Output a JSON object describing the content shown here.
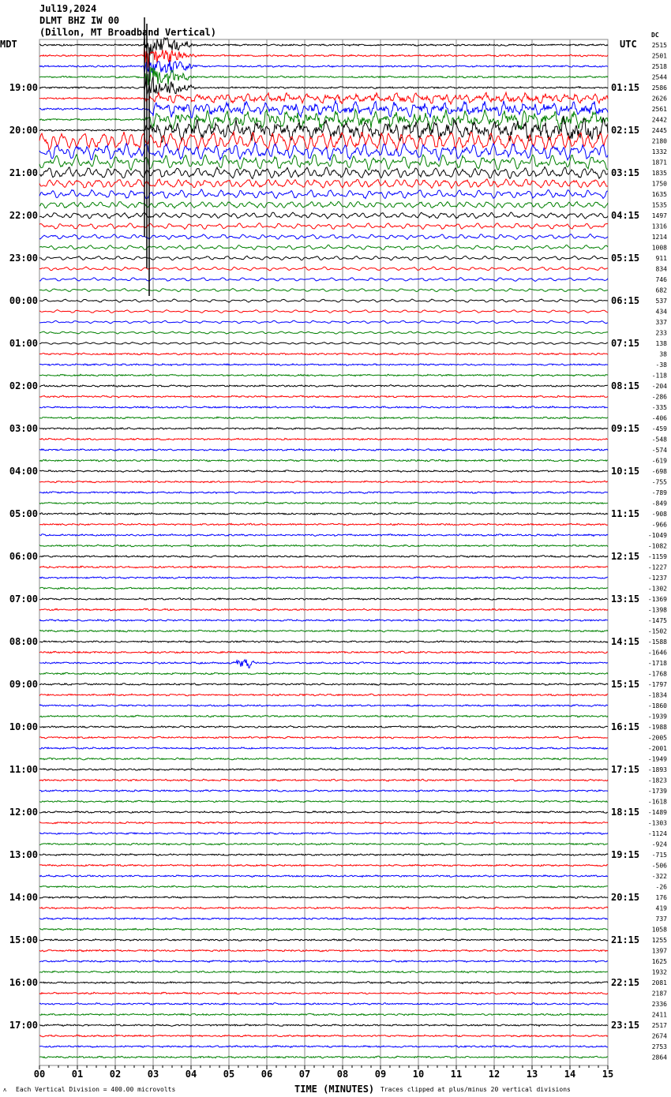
{
  "header": {
    "date": "Jul19,2024",
    "station": "DLMT BHZ IW 00",
    "location": "(Dillon, MT Broadband Vertical)",
    "left_tz": "MDT",
    "right_tz": "UTC",
    "dc_header": "DC"
  },
  "footer": {
    "scale_note": "Each Vertical Division =  400.00 microvolts",
    "xlabel": "TIME (MINUTES)",
    "clip_note": "Traces clipped at plus/minus 20 vertical divisions"
  },
  "chart_data": {
    "type": "line",
    "title": "DLMT BHZ IW 00",
    "xlabel": "TIME (MINUTES)",
    "xlim": [
      0,
      15
    ],
    "grid": true,
    "x_ticks": [
      "00",
      "01",
      "02",
      "03",
      "04",
      "05",
      "06",
      "07",
      "08",
      "09",
      "10",
      "11",
      "12",
      "13",
      "14",
      "15"
    ],
    "trace_colors": [
      "#000000",
      "#ff0000",
      "#0000ff",
      "#008000"
    ],
    "left_labels": [
      "19:00",
      "20:00",
      "21:00",
      "22:00",
      "23:00",
      "00:00",
      "01:00",
      "02:00",
      "03:00",
      "04:00",
      "05:00",
      "06:00",
      "07:00",
      "08:00",
      "09:00",
      "10:00",
      "11:00",
      "12:00",
      "13:00",
      "14:00",
      "15:00",
      "16:00",
      "17:00"
    ],
    "right_labels": [
      "01:15",
      "02:15",
      "03:15",
      "04:15",
      "05:15",
      "06:15",
      "07:15",
      "08:15",
      "09:15",
      "10:15",
      "11:15",
      "12:15",
      "13:15",
      "14:15",
      "15:15",
      "16:15",
      "17:15",
      "18:15",
      "19:15",
      "20:15",
      "21:15",
      "22:15",
      "23:15"
    ],
    "dc_values": [
      "2515",
      "2501",
      "2518",
      "2544",
      "2586",
      "2626",
      "2561",
      "2442",
      "2445",
      "2180",
      "1332",
      "1871",
      "1835",
      "1750",
      "1635",
      "1535",
      "1497",
      "1316",
      "1214",
      "1008",
      "911",
      "834",
      "746",
      "682",
      "537",
      "434",
      "337",
      "233",
      "138",
      "38",
      "-38",
      "-118",
      "-204",
      "-286",
      "-335",
      "-406",
      "-459",
      "-548",
      "-574",
      "-619",
      "-698",
      "-755",
      "-789",
      "-849",
      "-908",
      "-966",
      "-1049",
      "-1082",
      "-1159",
      "-1227",
      "-1237",
      "-1302",
      "-1369",
      "-1398",
      "-1475",
      "-1502",
      "-1588",
      "-1646",
      "-1718",
      "-1768",
      "-1797",
      "-1834",
      "-1860",
      "-1939",
      "-1988",
      "-2005",
      "-2001",
      "-1949",
      "-1893",
      "-1823",
      "-1739",
      "-1618",
      "-1489",
      "-1303",
      "-1124",
      "-924",
      "-715",
      "-506",
      "-322",
      "-26",
      "176",
      "419",
      "737",
      "1058",
      "1255",
      "1397",
      "1625",
      "1932",
      "2081",
      "2187",
      "2336",
      "2411",
      "2517",
      "2674",
      "2753",
      "2864"
    ]
  }
}
